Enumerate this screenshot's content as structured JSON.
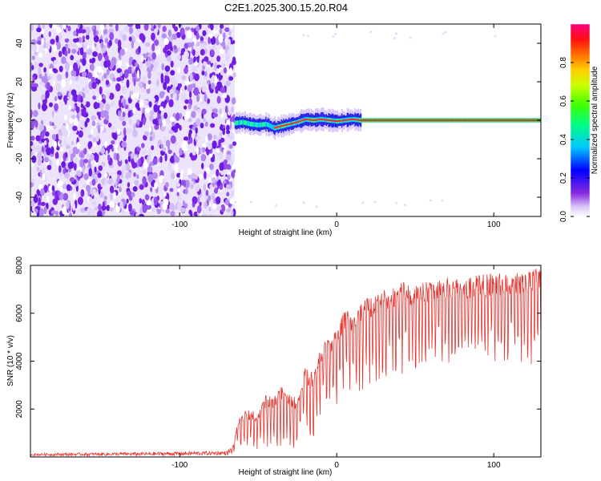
{
  "title": "C2E1.2025.300.15.20.R04",
  "colors": {
    "line": "#e8352f",
    "noise": "#7a22e6",
    "noise_light": "#c6a8f4",
    "axis": "#000000"
  },
  "chart_data": [
    {
      "type": "heatmap",
      "name": "spectrogram",
      "xlabel": "Height of straight line (km)",
      "ylabel": "Frequency (Hz)",
      "xlim": [
        -195,
        130
      ],
      "ylim": [
        -50,
        50
      ],
      "xticks": [
        -100,
        0,
        100
      ],
      "yticks": [
        -40,
        -20,
        0,
        20,
        40
      ],
      "grid": false,
      "colorbar": {
        "label": "Normalized spectral amplitude",
        "range": [
          0,
          1
        ],
        "ticks": [
          0.0,
          0.2,
          0.4,
          0.6,
          0.8
        ],
        "tick_labels": [
          "0.0",
          "0.2",
          "0.4",
          "0.6",
          "0.8"
        ]
      },
      "noise_region_x": [
        -195,
        -65
      ],
      "signal_track": {
        "x": [
          -65,
          -60,
          -55,
          -50,
          -45,
          -40,
          -35,
          -30,
          -25,
          -20,
          -15,
          -10,
          -5,
          0,
          5,
          10,
          15,
          30,
          60,
          90,
          130
        ],
        "frequency": [
          -1.5,
          -1.0,
          -2.0,
          -2.5,
          -2.0,
          -4.0,
          -3.0,
          -2.0,
          -1.0,
          0.5,
          0.0,
          0.5,
          0.0,
          -0.5,
          0.0,
          0.5,
          0.0,
          0.0,
          0.0,
          0.0,
          0.0
        ]
      }
    },
    {
      "type": "line",
      "name": "snr",
      "xlabel": "Height of straight line (km)",
      "ylabel": "SNR (10 * v/v)",
      "xlim": [
        -195,
        130
      ],
      "ylim": [
        0,
        8000
      ],
      "xticks": [
        -100,
        0,
        100
      ],
      "yticks": [
        2000,
        4000,
        6000,
        8000
      ],
      "grid": false,
      "envelope": {
        "x": [
          -195,
          -120,
          -70,
          -66,
          -62,
          -55,
          -50,
          -45,
          -40,
          -35,
          -30,
          -25,
          -20,
          -15,
          -10,
          -5,
          0,
          5,
          10,
          20,
          30,
          40,
          50,
          60,
          70,
          80,
          90,
          100,
          110,
          120,
          130
        ],
        "upper": [
          150,
          200,
          250,
          500,
          1800,
          2000,
          1800,
          2600,
          2500,
          3000,
          2700,
          2500,
          3800,
          3500,
          4600,
          5000,
          5300,
          6200,
          6000,
          6700,
          7000,
          7300,
          7300,
          7400,
          7500,
          7400,
          7600,
          7700,
          7600,
          7900,
          7900
        ],
        "lower": [
          50,
          50,
          80,
          100,
          400,
          300,
          300,
          250,
          300,
          200,
          500,
          200,
          800,
          800,
          1800,
          2000,
          2200,
          2600,
          2400,
          3000,
          3300,
          3400,
          3500,
          3700,
          3700,
          3700,
          3800,
          3900,
          4000,
          3800,
          3900
        ]
      }
    }
  ]
}
